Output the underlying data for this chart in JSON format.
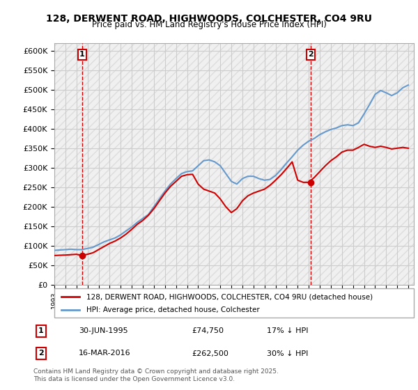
{
  "title_line1": "128, DERWENT ROAD, HIGHWOODS, COLCHESTER, CO4 9RU",
  "title_line2": "Price paid vs. HM Land Registry's House Price Index (HPI)",
  "ylim": [
    0,
    620000
  ],
  "yticks": [
    0,
    50000,
    100000,
    150000,
    200000,
    250000,
    300000,
    350000,
    400000,
    450000,
    500000,
    550000,
    600000
  ],
  "xlim_start": 1993.0,
  "xlim_end": 2025.5,
  "background_color": "#ffffff",
  "grid_color": "#cccccc",
  "hatch_color": "#dddddd",
  "sale_color": "#cc0000",
  "hpi_color": "#6699cc",
  "legend_label_sale": "128, DERWENT ROAD, HIGHWOODS, COLCHESTER, CO4 9RU (detached house)",
  "legend_label_hpi": "HPI: Average price, detached house, Colchester",
  "sale1_date": 1995.5,
  "sale1_price": 74750,
  "sale1_label": "1",
  "sale1_annotation": "30-JUN-1995    £74,750    17% ↓ HPI",
  "sale2_date": 2016.2,
  "sale2_price": 262500,
  "sale2_label": "2",
  "sale2_annotation": "16-MAR-2016    £262,500    30% ↓ HPI",
  "vline1_x": 1995.5,
  "vline2_x": 2016.2,
  "copyright_text": "Contains HM Land Registry data © Crown copyright and database right 2025.\nThis data is licensed under the Open Government Licence v3.0.",
  "hpi_x": [
    1993.0,
    1993.5,
    1994.0,
    1994.5,
    1995.0,
    1995.5,
    1996.0,
    1996.5,
    1997.0,
    1997.5,
    1998.0,
    1998.5,
    1999.0,
    1999.5,
    2000.0,
    2000.5,
    2001.0,
    2001.5,
    2002.0,
    2002.5,
    2003.0,
    2003.5,
    2004.0,
    2004.5,
    2005.0,
    2005.5,
    2006.0,
    2006.5,
    2007.0,
    2007.5,
    2008.0,
    2008.5,
    2009.0,
    2009.5,
    2010.0,
    2010.5,
    2011.0,
    2011.5,
    2012.0,
    2012.5,
    2013.0,
    2013.5,
    2014.0,
    2014.5,
    2015.0,
    2015.5,
    2016.0,
    2016.5,
    2017.0,
    2017.5,
    2018.0,
    2018.5,
    2019.0,
    2019.5,
    2020.0,
    2020.5,
    2021.0,
    2021.5,
    2022.0,
    2022.5,
    2023.0,
    2023.5,
    2024.0,
    2024.5,
    2025.0
  ],
  "hpi_y": [
    88000,
    89000,
    90000,
    91000,
    90000,
    90000,
    93000,
    96000,
    103000,
    110000,
    115000,
    120000,
    128000,
    138000,
    148000,
    160000,
    170000,
    180000,
    200000,
    220000,
    240000,
    258000,
    272000,
    285000,
    290000,
    292000,
    305000,
    318000,
    320000,
    315000,
    305000,
    285000,
    265000,
    258000,
    272000,
    278000,
    278000,
    272000,
    268000,
    270000,
    280000,
    295000,
    312000,
    328000,
    345000,
    358000,
    368000,
    375000,
    385000,
    392000,
    398000,
    402000,
    408000,
    410000,
    408000,
    415000,
    438000,
    462000,
    488000,
    498000,
    492000,
    485000,
    492000,
    505000,
    512000
  ],
  "sale_x": [
    1993.0,
    1993.5,
    1994.0,
    1994.5,
    1995.0,
    1995.5,
    1996.0,
    1996.5,
    1997.0,
    1997.5,
    1998.0,
    1998.5,
    1999.0,
    1999.5,
    2000.0,
    2000.5,
    2001.0,
    2001.5,
    2002.0,
    2002.5,
    2003.0,
    2003.5,
    2004.0,
    2004.5,
    2005.0,
    2005.5,
    2006.0,
    2006.5,
    2007.0,
    2007.5,
    2008.0,
    2008.5,
    2009.0,
    2009.5,
    2010.0,
    2010.5,
    2011.0,
    2011.5,
    2012.0,
    2012.5,
    2013.0,
    2013.5,
    2014.0,
    2014.5,
    2015.0,
    2015.5,
    2016.0,
    2016.5,
    2017.0,
    2017.5,
    2018.0,
    2018.5,
    2019.0,
    2019.5,
    2020.0,
    2020.5,
    2021.0,
    2021.5,
    2022.0,
    2022.5,
    2023.0,
    2023.5,
    2024.0,
    2024.5,
    2025.0
  ],
  "sale_y": [
    74750,
    75500,
    76000,
    77000,
    78000,
    74750,
    78000,
    82000,
    90000,
    98000,
    106000,
    112000,
    120000,
    130000,
    142000,
    155000,
    165000,
    178000,
    195000,
    215000,
    235000,
    252000,
    265000,
    278000,
    282000,
    283000,
    258000,
    245000,
    240000,
    235000,
    220000,
    200000,
    185000,
    195000,
    215000,
    228000,
    235000,
    240000,
    245000,
    255000,
    268000,
    282000,
    298000,
    315000,
    268000,
    262500,
    262500,
    275000,
    290000,
    305000,
    318000,
    328000,
    340000,
    345000,
    345000,
    352000,
    360000,
    355000,
    352000,
    355000,
    352000,
    348000,
    350000,
    352000,
    350000
  ]
}
